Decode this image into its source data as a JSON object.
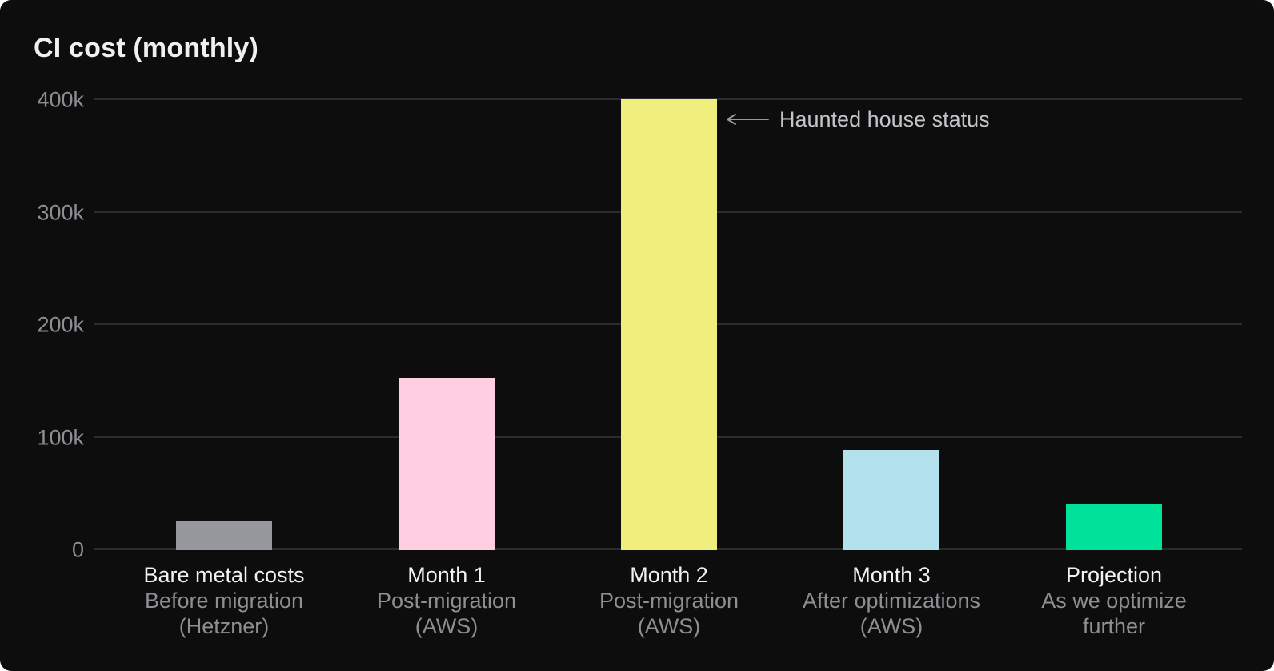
{
  "chart_data": {
    "type": "bar",
    "title": "CI cost (monthly)",
    "xlabel": "",
    "ylabel": "",
    "ylim": [
      0,
      400000
    ],
    "grid": true,
    "legend": false,
    "yticks": [
      {
        "value": 0,
        "label": "0"
      },
      {
        "value": 100000,
        "label": "100k"
      },
      {
        "value": 200000,
        "label": "200k"
      },
      {
        "value": 300000,
        "label": "300k"
      },
      {
        "value": 400000,
        "label": "400k"
      }
    ],
    "bars": [
      {
        "category": "Bare metal costs",
        "sublabel_lines": [
          "Before migration",
          "(Hetzner)"
        ],
        "value": 25000,
        "color": "#97979e"
      },
      {
        "category": "Month 1",
        "sublabel_lines": [
          "Post-migration",
          "(AWS)"
        ],
        "value": 152000,
        "color": "#ffcfe1"
      },
      {
        "category": "Month 2",
        "sublabel_lines": [
          "Post-migration",
          "(AWS)"
        ],
        "value": 400000,
        "color": "#f0ee7d"
      },
      {
        "category": "Month 3",
        "sublabel_lines": [
          "After optimizations",
          "(AWS)"
        ],
        "value": 88000,
        "color": "#b3e1ec"
      },
      {
        "category": "Projection",
        "sublabel_lines": [
          "As we optimize",
          "further"
        ],
        "value": 40000,
        "color": "#00e29a"
      }
    ],
    "annotation": {
      "text": "Haunted house status",
      "arrow": "left-arrow",
      "target_category": "Month 2"
    }
  }
}
